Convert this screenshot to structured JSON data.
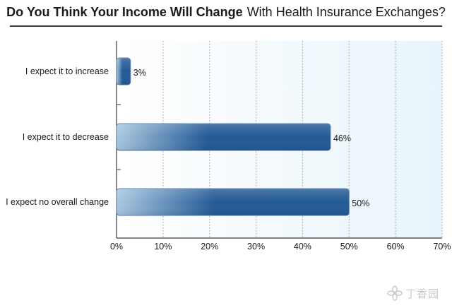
{
  "title": {
    "bold": "Do You Think Your Income Will Change",
    "rest": "With Health Insurance Exchanges?"
  },
  "colors": {
    "bar_dark": "#235a96",
    "bar_light": "#a9c8e0",
    "plot_bg_left": "#ffffff",
    "plot_bg_right": "#e8f4fb",
    "grid": "#9aa0a6",
    "axis": "#3a3a3a"
  },
  "chart_data": {
    "type": "bar",
    "orientation": "horizontal",
    "categories": [
      "I expect it to increase",
      "I expect it to decrease",
      "I expect no overall change"
    ],
    "values": [
      3,
      46,
      50
    ],
    "value_labels": [
      "3%",
      "46%",
      "50%"
    ],
    "xlim": [
      0,
      70
    ],
    "xticks": [
      0,
      10,
      20,
      30,
      40,
      50,
      60,
      70
    ],
    "xtick_labels": [
      "0%",
      "10%",
      "20%",
      "30%",
      "40%",
      "50%",
      "60%",
      "70%"
    ],
    "grid": "vertical-dotted"
  },
  "watermark": {
    "text": "丁香园"
  }
}
